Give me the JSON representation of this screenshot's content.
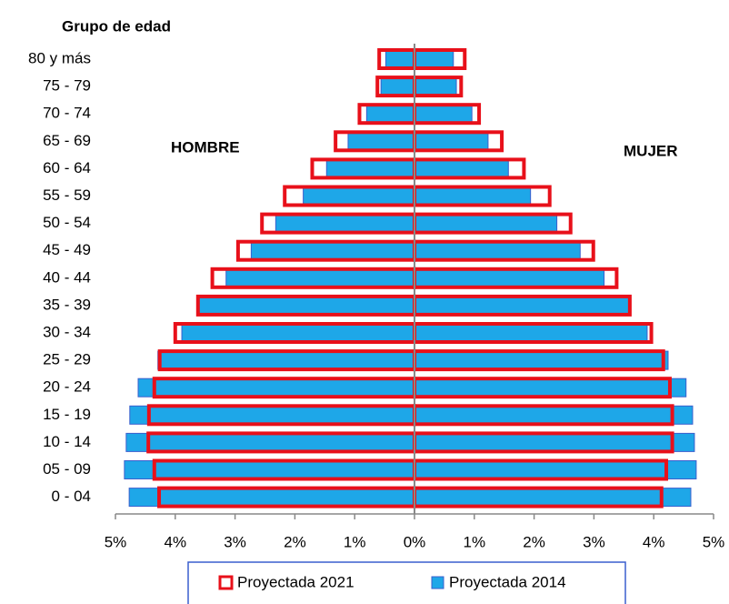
{
  "chart_data": {
    "type": "population-pyramid",
    "axis_title": "Grupo de edad",
    "annotations": [
      "HOMBRE",
      "MUJER"
    ],
    "categories": [
      "80 y más",
      "75 - 79",
      "70 - 74",
      "65 - 69",
      "60 - 64",
      "55 - 59",
      "50 - 54",
      "45 - 49",
      "40 - 44",
      "35 - 39",
      "30 - 34",
      "25 - 29",
      "20 - 24",
      "15 - 19",
      "10 - 14",
      "05 - 09",
      "0 - 04"
    ],
    "series": [
      {
        "name": "Proyectada 2014",
        "color": "#1ea7e8",
        "edge": "#3a5fcd",
        "style": "filled",
        "hombre": [
          -0.48,
          -0.56,
          -0.8,
          -1.11,
          -1.47,
          -1.86,
          -2.32,
          -2.73,
          -3.15,
          -3.62,
          -3.89,
          -4.29,
          -4.62,
          -4.76,
          -4.82,
          -4.85,
          -4.77
        ],
        "mujer": [
          0.65,
          0.7,
          0.96,
          1.23,
          1.57,
          1.94,
          2.38,
          2.77,
          3.17,
          3.6,
          3.89,
          4.24,
          4.54,
          4.65,
          4.68,
          4.71,
          4.62
        ]
      },
      {
        "name": "Proyectada 2021",
        "color": "#e8101a",
        "style": "outline",
        "hombre": [
          -0.59,
          -0.62,
          -0.92,
          -1.32,
          -1.71,
          -2.17,
          -2.55,
          -2.95,
          -3.38,
          -3.62,
          -4.0,
          -4.26,
          -4.35,
          -4.44,
          -4.45,
          -4.35,
          -4.27
        ],
        "mujer": [
          0.84,
          0.78,
          1.08,
          1.46,
          1.83,
          2.26,
          2.61,
          2.99,
          3.38,
          3.6,
          3.96,
          4.16,
          4.27,
          4.31,
          4.31,
          4.21,
          4.13
        ]
      }
    ],
    "xlim": [
      -5,
      5
    ],
    "xticks": [
      {
        "value": -5,
        "label": "5%"
      },
      {
        "value": -4,
        "label": "4%"
      },
      {
        "value": -3,
        "label": "3%"
      },
      {
        "value": -2,
        "label": "2%"
      },
      {
        "value": -1,
        "label": "1%"
      },
      {
        "value": 0,
        "label": "0%"
      },
      {
        "value": 1,
        "label": "1%"
      },
      {
        "value": 2,
        "label": "2%"
      },
      {
        "value": 3,
        "label": "3%"
      },
      {
        "value": 4,
        "label": "4%"
      },
      {
        "value": 5,
        "label": "5%"
      }
    ],
    "legend_order": [
      1,
      0
    ]
  }
}
